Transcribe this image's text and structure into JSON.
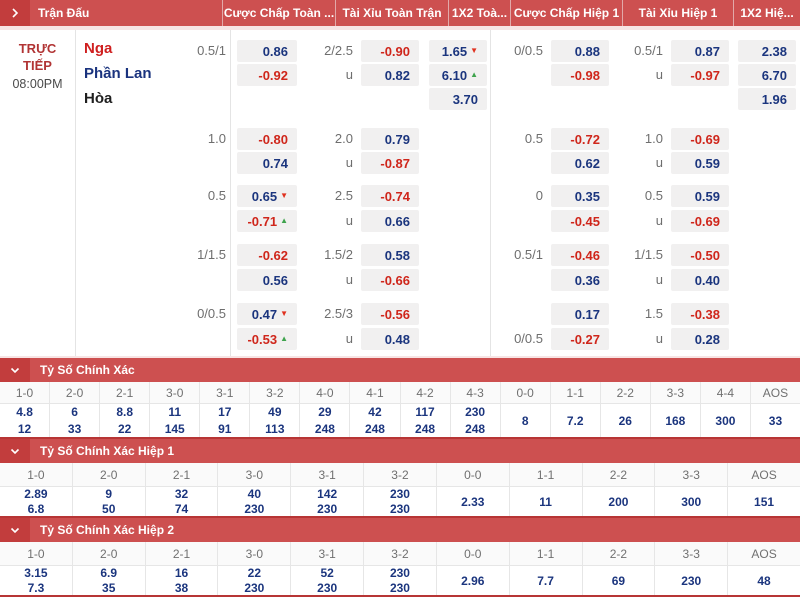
{
  "colors": {
    "accent": "#cd5050",
    "accent_dark": "#c23d3d",
    "odds_blue": "#1b357e",
    "odds_red": "#cf261b",
    "trend_up": "#3fa34d",
    "trend_down": "#e0311f"
  },
  "header": {
    "columns": [
      "Trận Đấu",
      "Cược Chấp Toàn ...",
      "Tài Xỉu Toàn Trận",
      "1X2 Toà...",
      "Cược Chấp Hiệp 1",
      "Tài Xỉu Hiệp 1",
      "1X2 Hiệ..."
    ]
  },
  "match": {
    "status": "TRỰC TIẾP",
    "time": "08:00PM",
    "home": "Nga",
    "away": "Phần Lan",
    "draw": "Hòa"
  },
  "odds_blocks": [
    {
      "ft_ah": {
        "line": "0.5/1",
        "line_row": 1,
        "r1": "0.86",
        "r1_trend": "",
        "r2": "-0.92",
        "r2_trend": ""
      },
      "ft_ou": {
        "line": "2/2.5",
        "u": "u",
        "r1": "-0.90",
        "r2": "0.82"
      },
      "ft_1x2": [
        {
          "v": "1.65",
          "trend": "down"
        },
        {
          "v": "6.10",
          "trend": "up"
        },
        {
          "v": "3.70",
          "trend": ""
        }
      ],
      "h1_ah": {
        "line": "0/0.5",
        "line_row": 1,
        "r1": "0.88",
        "r1_trend": "",
        "r2": "-0.98",
        "r2_trend": ""
      },
      "h1_ou": {
        "line": "0.5/1",
        "u": "u",
        "r1": "0.87",
        "r2": "-0.97"
      },
      "h1_1x2": [
        {
          "v": "2.38",
          "trend": ""
        },
        {
          "v": "6.70",
          "trend": ""
        },
        {
          "v": "1.96",
          "trend": ""
        }
      ]
    },
    {
      "ft_ah": {
        "line": "1.0",
        "line_row": 1,
        "r1": "-0.80",
        "r1_trend": "",
        "r2": "0.74",
        "r2_trend": ""
      },
      "ft_ou": {
        "line": "2.0",
        "u": "u",
        "r1": "0.79",
        "r2": "-0.87"
      },
      "ft_1x2": [],
      "h1_ah": {
        "line": "0.5",
        "line_row": 1,
        "r1": "-0.72",
        "r1_trend": "",
        "r2": "0.62",
        "r2_trend": ""
      },
      "h1_ou": {
        "line": "1.0",
        "u": "u",
        "r1": "-0.69",
        "r2": "0.59"
      },
      "h1_1x2": []
    },
    {
      "ft_ah": {
        "line": "0.5",
        "line_row": 1,
        "r1": "0.65",
        "r1_trend": "down",
        "r2": "-0.71",
        "r2_trend": "up"
      },
      "ft_ou": {
        "line": "2.5",
        "u": "u",
        "r1": "-0.74",
        "r2": "0.66"
      },
      "ft_1x2": [],
      "h1_ah": {
        "line": "0",
        "line_row": 1,
        "r1": "0.35",
        "r1_trend": "",
        "r2": "-0.45",
        "r2_trend": ""
      },
      "h1_ou": {
        "line": "0.5",
        "u": "u",
        "r1": "0.59",
        "r2": "-0.69"
      },
      "h1_1x2": []
    },
    {
      "ft_ah": {
        "line": "1/1.5",
        "line_row": 1,
        "r1": "-0.62",
        "r1_trend": "",
        "r2": "0.56",
        "r2_trend": ""
      },
      "ft_ou": {
        "line": "1.5/2",
        "u": "u",
        "r1": "0.58",
        "r2": "-0.66"
      },
      "ft_1x2": [],
      "h1_ah": {
        "line": "0.5/1",
        "line_row": 1,
        "r1": "-0.46",
        "r1_trend": "",
        "r2": "0.36",
        "r2_trend": ""
      },
      "h1_ou": {
        "line": "1/1.5",
        "u": "u",
        "r1": "-0.50",
        "r2": "0.40"
      },
      "h1_1x2": []
    },
    {
      "ft_ah": {
        "line": "0/0.5",
        "line_row": 1,
        "r1": "0.47",
        "r1_trend": "down",
        "r2": "-0.53",
        "r2_trend": "up"
      },
      "ft_ou": {
        "line": "2.5/3",
        "u": "u",
        "r1": "-0.56",
        "r2": "0.48"
      },
      "ft_1x2": [],
      "h1_ah": {
        "line": "0/0.5",
        "line_row": 2,
        "r1": "0.17",
        "r1_trend": "",
        "r2": "-0.27",
        "r2_trend": ""
      },
      "h1_ou": {
        "line": "1.5",
        "u": "u",
        "r1": "-0.38",
        "r2": "0.28"
      },
      "h1_1x2": []
    }
  ],
  "score_sections": [
    {
      "title": "Tỷ Số Chính Xác",
      "columns": [
        {
          "score": "1-0",
          "values": [
            "4.8",
            "12"
          ]
        },
        {
          "score": "2-0",
          "values": [
            "6",
            "33"
          ]
        },
        {
          "score": "2-1",
          "values": [
            "8.8",
            "22"
          ]
        },
        {
          "score": "3-0",
          "values": [
            "11",
            "145"
          ]
        },
        {
          "score": "3-1",
          "values": [
            "17",
            "91"
          ]
        },
        {
          "score": "3-2",
          "values": [
            "49",
            "113"
          ]
        },
        {
          "score": "4-0",
          "values": [
            "29",
            "248"
          ]
        },
        {
          "score": "4-1",
          "values": [
            "42",
            "248"
          ]
        },
        {
          "score": "4-2",
          "values": [
            "117",
            "248"
          ]
        },
        {
          "score": "4-3",
          "values": [
            "230",
            "248"
          ]
        },
        {
          "score": "0-0",
          "values": [
            "8"
          ]
        },
        {
          "score": "1-1",
          "values": [
            "7.2"
          ]
        },
        {
          "score": "2-2",
          "values": [
            "26"
          ]
        },
        {
          "score": "3-3",
          "values": [
            "168"
          ]
        },
        {
          "score": "4-4",
          "values": [
            "300"
          ]
        },
        {
          "score": "AOS",
          "values": [
            "33"
          ]
        }
      ]
    },
    {
      "title": "Tỷ Số Chính Xác Hiệp 1",
      "columns": [
        {
          "score": "1-0",
          "values": [
            "2.89",
            "6.8"
          ]
        },
        {
          "score": "2-0",
          "values": [
            "9",
            "50"
          ]
        },
        {
          "score": "2-1",
          "values": [
            "32",
            "74"
          ]
        },
        {
          "score": "3-0",
          "values": [
            "40",
            "230"
          ]
        },
        {
          "score": "3-1",
          "values": [
            "142",
            "230"
          ]
        },
        {
          "score": "3-2",
          "values": [
            "230",
            "230"
          ]
        },
        {
          "score": "0-0",
          "values": [
            "2.33"
          ]
        },
        {
          "score": "1-1",
          "values": [
            "11"
          ]
        },
        {
          "score": "2-2",
          "values": [
            "200"
          ]
        },
        {
          "score": "3-3",
          "values": [
            "300"
          ]
        },
        {
          "score": "AOS",
          "values": [
            "151"
          ]
        }
      ]
    },
    {
      "title": "Tỷ Số Chính Xác Hiệp 2",
      "columns": [
        {
          "score": "1-0",
          "values": [
            "3.15",
            "7.3"
          ]
        },
        {
          "score": "2-0",
          "values": [
            "6.9",
            "35"
          ]
        },
        {
          "score": "2-1",
          "values": [
            "16",
            "38"
          ]
        },
        {
          "score": "3-0",
          "values": [
            "22",
            "230"
          ]
        },
        {
          "score": "3-1",
          "values": [
            "52",
            "230"
          ]
        },
        {
          "score": "3-2",
          "values": [
            "230",
            "230"
          ]
        },
        {
          "score": "0-0",
          "values": [
            "2.96"
          ]
        },
        {
          "score": "1-1",
          "values": [
            "7.7"
          ]
        },
        {
          "score": "2-2",
          "values": [
            "69"
          ]
        },
        {
          "score": "3-3",
          "values": [
            "230"
          ]
        },
        {
          "score": "AOS",
          "values": [
            "48"
          ]
        }
      ]
    }
  ]
}
